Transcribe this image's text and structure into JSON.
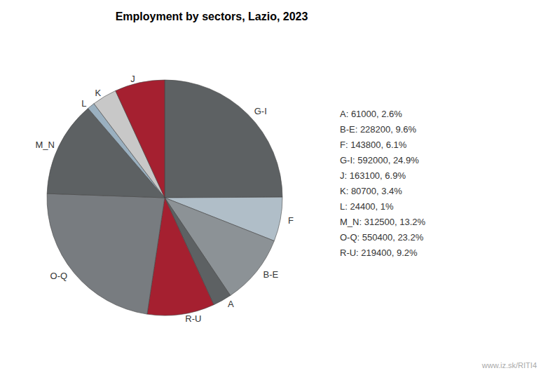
{
  "chart_data": {
    "type": "pie",
    "title": "Employment by sectors, Lazio, 2023",
    "categories": [
      "G-I",
      "F",
      "B-E",
      "A",
      "R-U",
      "O-Q",
      "M_N",
      "L",
      "K",
      "J"
    ],
    "values": [
      592000,
      143800,
      228200,
      61000,
      219400,
      550400,
      312500,
      24400,
      80700,
      163100
    ],
    "colors": [
      "#5d6163",
      "#b0bec8",
      "#8c9296",
      "#5d6163",
      "#a52030",
      "#787c80",
      "#5d6163",
      "#9ab0c0",
      "#c8c8c8",
      "#a52030"
    ],
    "legend": "right",
    "legend_labels": [
      "A: 61000, 2.6%",
      "B-E: 228200, 9.6%",
      "F: 143800, 6.1%",
      "G-I: 592000, 24.9%",
      "J: 163100, 6.9%",
      "K: 80700, 3.4%",
      "L: 24400, 1%",
      "M_N: 312500, 13.2%",
      "O-Q: 550400, 23.2%",
      "R-U: 219400, 9.2%"
    ],
    "annotations": [
      "www.iz.sk/RITI4"
    ]
  }
}
